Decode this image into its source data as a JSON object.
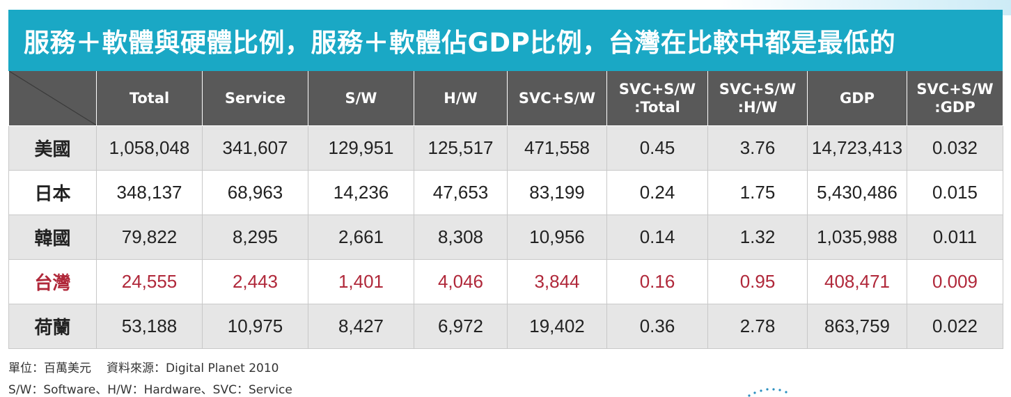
{
  "title": "服務＋軟體與硬體比例，服務＋軟體佔GDP比例，台灣在比較中都是最低的",
  "table": {
    "columns": [
      [
        "Total"
      ],
      [
        "Service"
      ],
      [
        "S/W"
      ],
      [
        "H/W"
      ],
      [
        "SVC+S/W"
      ],
      [
        "SVC+S/W",
        ":Total"
      ],
      [
        "SVC+S/W",
        ":H/W"
      ],
      [
        "GDP"
      ],
      [
        "SVC+S/W",
        ":GDP"
      ]
    ],
    "rows": [
      {
        "label": "美國",
        "values": [
          "1,058,048",
          "341,607",
          "129,951",
          "125,517",
          "471,558",
          "0.45",
          "3.76",
          "14,723,413",
          "0.032"
        ]
      },
      {
        "label": "日本",
        "values": [
          "348,137",
          "68,963",
          "14,236",
          "47,653",
          "83,199",
          "0.24",
          "1.75",
          "5,430,486",
          "0.015"
        ]
      },
      {
        "label": "韓國",
        "values": [
          "79,822",
          "8,295",
          "2,661",
          "8,308",
          "10,956",
          "0.14",
          "1.32",
          "1,035,988",
          "0.011"
        ]
      },
      {
        "label": "台灣",
        "values": [
          "24,555",
          "2,443",
          "1,401",
          "4,046",
          "3,844",
          "0.16",
          "0.95",
          "408,471",
          "0.009"
        ]
      },
      {
        "label": "荷蘭",
        "values": [
          "53,188",
          "10,975",
          "8,427",
          "6,972",
          "19,402",
          "0.36",
          "2.78",
          "863,759",
          "0.022"
        ]
      }
    ]
  },
  "footnotes": {
    "unit": "單位：百萬美元",
    "source": "資料來源：Digital Planet 2010",
    "abbrev": "S/W：Software、H/W：Hardware、SVC：Service"
  },
  "colors": {
    "title_bar": "#1aa8c5",
    "header_bg": "#595959",
    "highlight_text": "#b0283a",
    "stripe": "#e6e6e6"
  }
}
